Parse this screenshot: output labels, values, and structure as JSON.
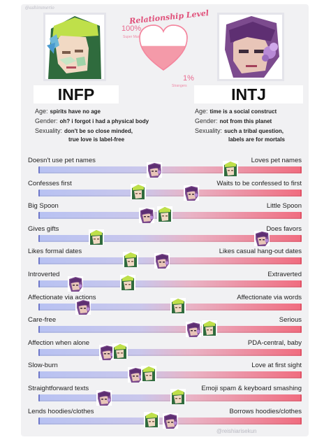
{
  "watermark_top": "@ashimmerio",
  "watermark_bottom": "@reishiarisekun",
  "meter": {
    "title": "Relationship Level",
    "top_percent": "100%",
    "top_sub": "Super Married",
    "bottom_percent": "1%",
    "bottom_sub": "Strangers",
    "level_fraction": 0.55
  },
  "profiles": {
    "left": {
      "name": "INFP",
      "age_key": "Age:",
      "age_val": "spirits have no age",
      "gender_key": "Gender:",
      "gender_val": "oh? i forgot i had a physical body",
      "sexuality_key": "Sexuality:",
      "sexuality_val_1": "don't be so close minded,",
      "sexuality_val_2": "true love is label-free"
    },
    "right": {
      "name": "INTJ",
      "age_key": "Age:",
      "age_val": "time is a social construct",
      "gender_key": "Gender:",
      "gender_val": "not from this planet",
      "sexuality_key": "Sexuality:",
      "sexuality_val_1": "such a tribal question,",
      "sexuality_val_2": "labels are for mortals"
    }
  },
  "colors": {
    "bar_left": "#b8c2f2",
    "bar_right": "#f06d80",
    "infp_accent": "#b4d444",
    "intj_accent": "#8a4fa0"
  },
  "scales": [
    {
      "left": "Doesn't use pet names",
      "right": "Loves pet names",
      "intj": 0.44,
      "infp": 0.73
    },
    {
      "left": "Confesses first",
      "right": "Waits to be confessed to first",
      "intj": 0.58,
      "infp": 0.38
    },
    {
      "left": "Big Spoon",
      "right": "Little Spoon",
      "intj": 0.41,
      "infp": 0.48
    },
    {
      "left": "Gives gifts",
      "right": "Does favors",
      "intj": 0.85,
      "infp": 0.22
    },
    {
      "left": "Likes formal dates",
      "right": "Likes casual hang-out dates",
      "intj": 0.47,
      "infp": 0.35
    },
    {
      "left": "Introverted",
      "right": "Extraverted",
      "intj": 0.14,
      "infp": 0.34
    },
    {
      "left": "Affectionate via actions",
      "right": "Affectionate via words",
      "intj": 0.17,
      "infp": 0.53
    },
    {
      "left": "Care-free",
      "right": "Serious",
      "intj": 0.59,
      "infp": 0.65
    },
    {
      "left": "Affection when alone",
      "right": "PDA-central, baby",
      "intj": 0.26,
      "infp": 0.31
    },
    {
      "left": "Slow-burn",
      "right": "Love at first sight",
      "intj": 0.37,
      "infp": 0.42
    },
    {
      "left": "Straightforward texts",
      "right": "Emoji spam & keyboard smashing",
      "intj": 0.25,
      "infp": 0.53
    },
    {
      "left": "Lends hoodies/clothes",
      "right": "Borrows hoodies/clothes",
      "intj": 0.5,
      "infp": 0.43
    }
  ]
}
